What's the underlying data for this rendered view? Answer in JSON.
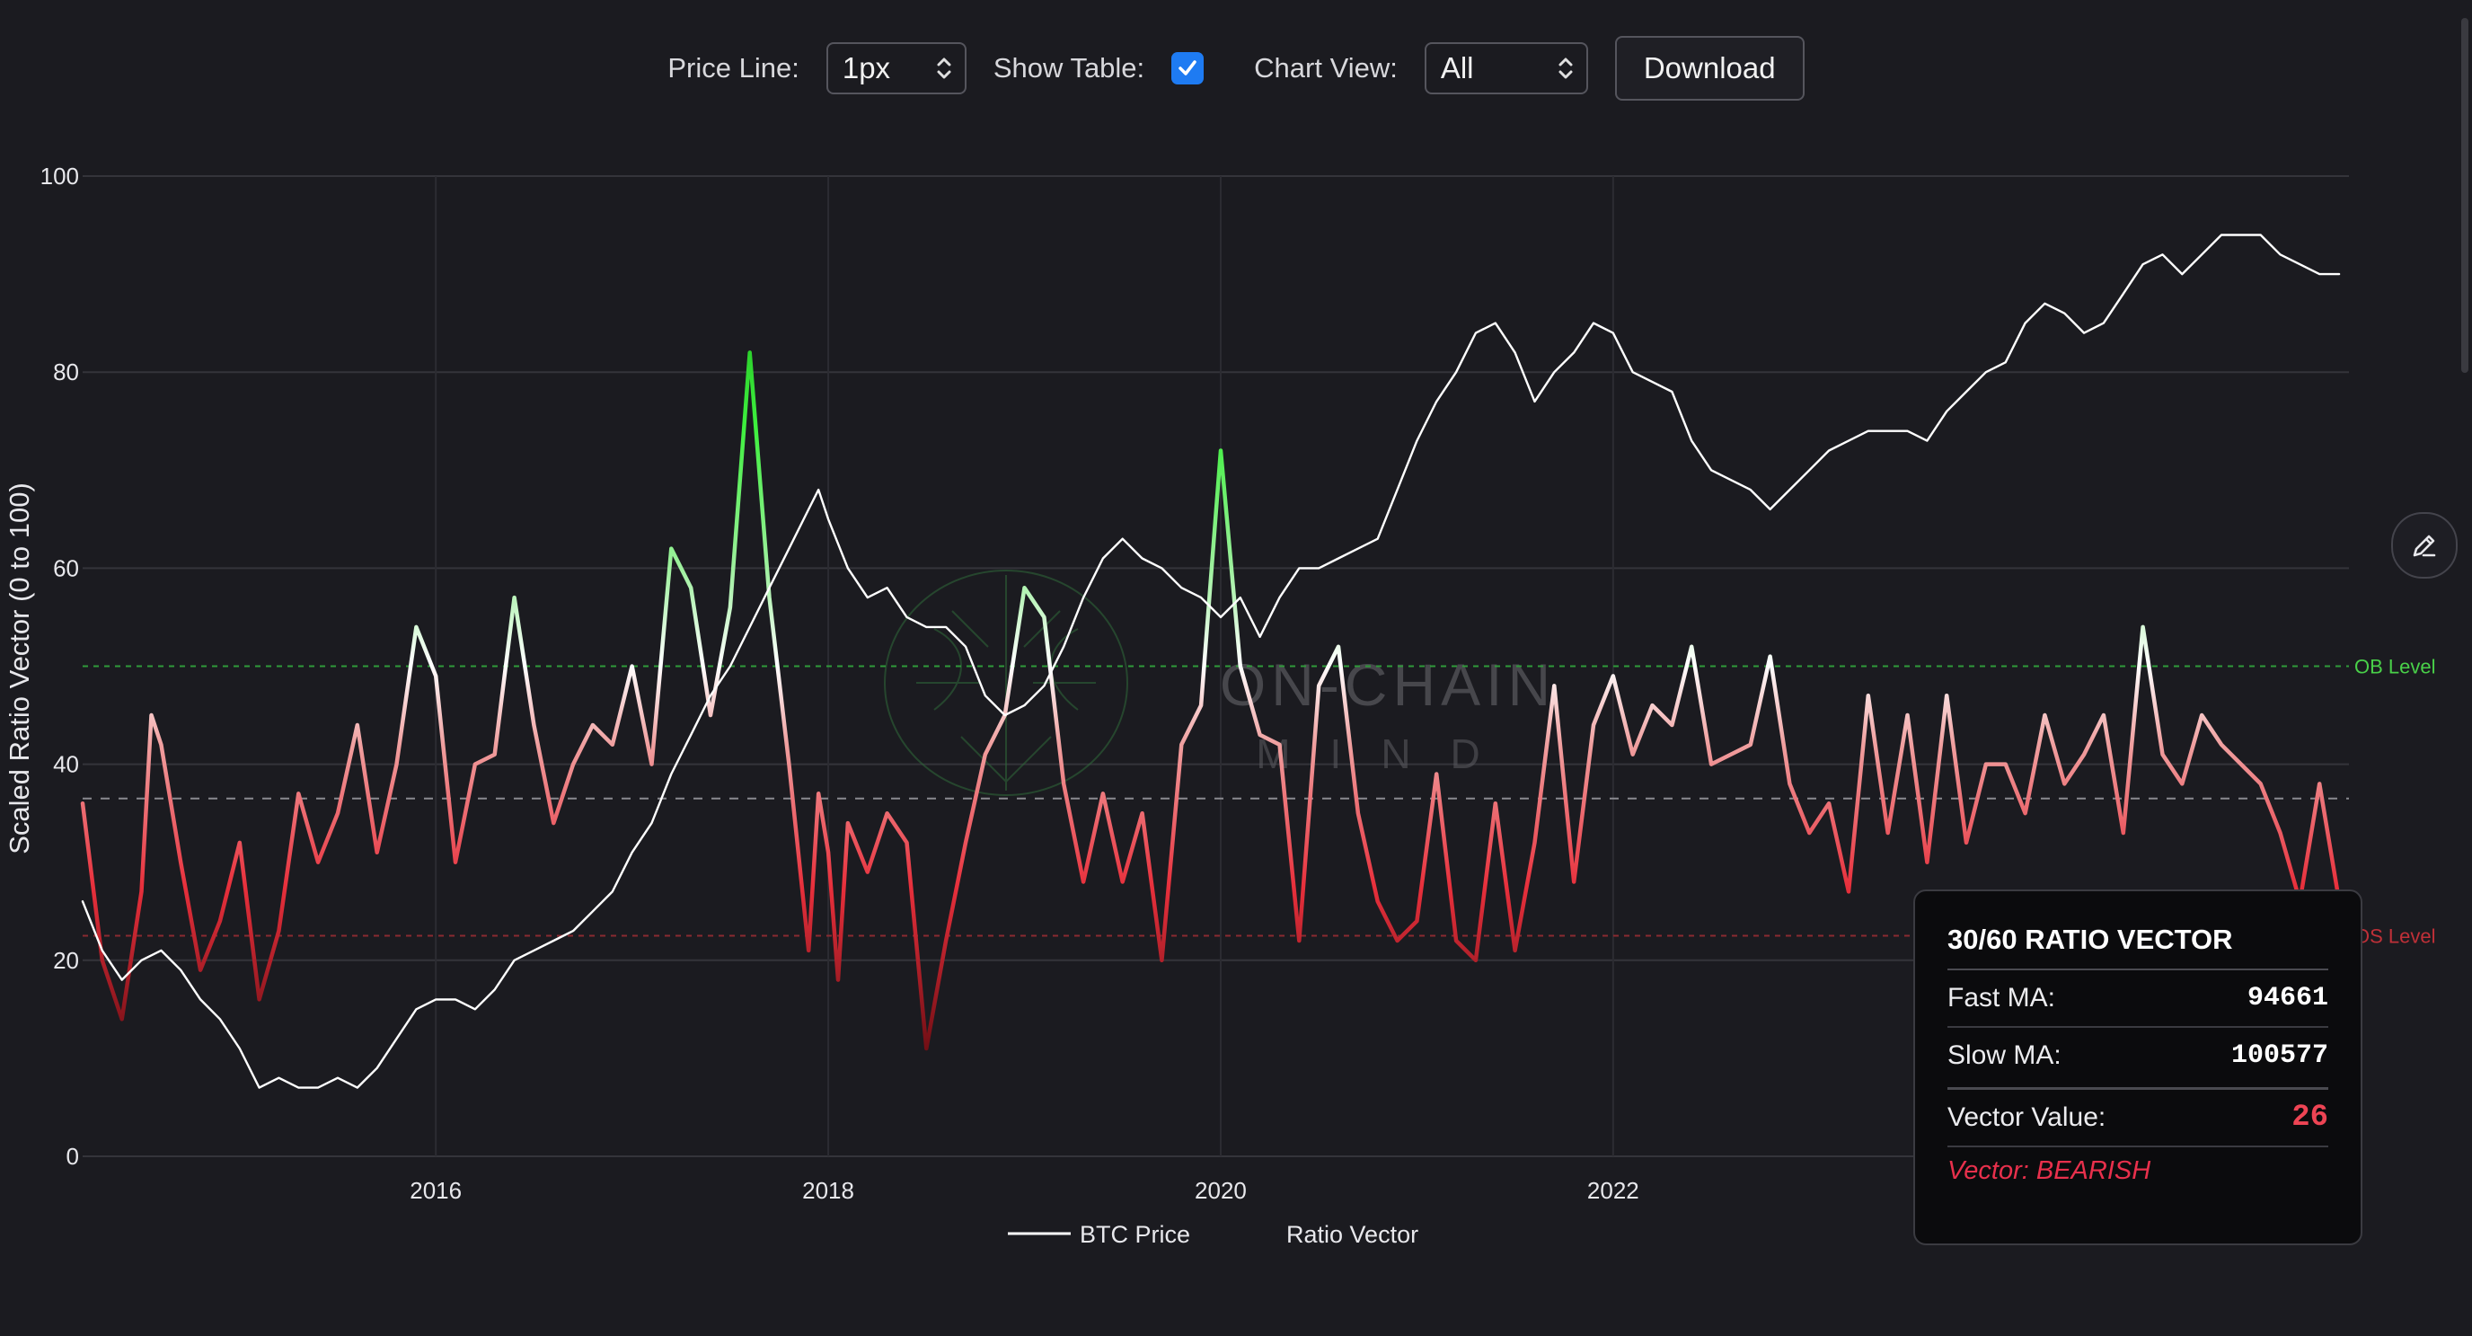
{
  "controls": {
    "price_line_label": "Price Line:",
    "price_line_value": "1px",
    "show_table_label": "Show Table:",
    "show_table_checked": true,
    "chart_view_label": "Chart View:",
    "chart_view_value": "All",
    "download_label": "Download"
  },
  "watermark": {
    "line1": "ON-CHAIN",
    "line2": "MIND"
  },
  "levels": {
    "ob_label": "OB Level",
    "os_label": "OS Level",
    "ob_value": 50,
    "os_value": 22.5,
    "mid_value": 36.5
  },
  "legend": {
    "price": "BTC Price",
    "vector": "Ratio Vector"
  },
  "tooltip": {
    "title": "30/60 RATIO VECTOR",
    "fast_label": "Fast MA:",
    "fast_value": "94661",
    "slow_label": "Slow MA:",
    "slow_value": "100577",
    "vector_label": "Vector Value:",
    "vector_value": "26",
    "status": "Vector: BEARISH"
  },
  "colors": {
    "background": "#1b1b20",
    "bullish": "#3ee83e",
    "bearish": "#e8303c",
    "price": "#ffffff",
    "accent": "#1e7bf2"
  },
  "icons": {
    "edit": "pencil-icon",
    "select": "chevron-updown-icon",
    "check": "checkmark-icon"
  },
  "chart_data": {
    "type": "line",
    "ylabel": "Scaled Ratio Vector (0 to 100)",
    "ylim": [
      0,
      100
    ],
    "xlim": [
      2014.2,
      2025.75
    ],
    "y_ticks": [
      0,
      20,
      40,
      60,
      80,
      100
    ],
    "x_ticks": [
      2016,
      2018,
      2020,
      2022
    ],
    "grid": true,
    "legend_placement": "bottom-center",
    "series": [
      {
        "name": "BTC Price",
        "x": [
          2014.2,
          2014.3,
          2014.4,
          2014.5,
          2014.6,
          2014.7,
          2014.8,
          2014.9,
          2015.0,
          2015.1,
          2015.2,
          2015.3,
          2015.4,
          2015.5,
          2015.6,
          2015.7,
          2015.8,
          2015.9,
          2016.0,
          2016.1,
          2016.2,
          2016.3,
          2016.4,
          2016.5,
          2016.6,
          2016.7,
          2016.8,
          2016.9,
          2017.0,
          2017.1,
          2017.2,
          2017.3,
          2017.4,
          2017.5,
          2017.6,
          2017.7,
          2017.8,
          2017.9,
          2017.95,
          2018.0,
          2018.1,
          2018.2,
          2018.3,
          2018.4,
          2018.5,
          2018.6,
          2018.7,
          2018.8,
          2018.9,
          2019.0,
          2019.1,
          2019.2,
          2019.3,
          2019.4,
          2019.5,
          2019.6,
          2019.7,
          2019.8,
          2019.9,
          2020.0,
          2020.1,
          2020.2,
          2020.3,
          2020.4,
          2020.5,
          2020.6,
          2020.7,
          2020.8,
          2020.9,
          2021.0,
          2021.1,
          2021.2,
          2021.3,
          2021.4,
          2021.5,
          2021.6,
          2021.7,
          2021.8,
          2021.9,
          2022.0,
          2022.1,
          2022.2,
          2022.3,
          2022.4,
          2022.5,
          2022.6,
          2022.7,
          2022.8,
          2022.9,
          2023.0,
          2023.1,
          2023.2,
          2023.3,
          2023.4,
          2023.5,
          2023.6,
          2023.7,
          2023.8,
          2023.9,
          2024.0,
          2024.1,
          2024.2,
          2024.3,
          2024.4,
          2024.5,
          2024.6,
          2024.7,
          2024.8,
          2024.9,
          2025.0,
          2025.1,
          2025.2,
          2025.3,
          2025.4,
          2025.5,
          2025.6,
          2025.7
        ],
        "y": [
          26,
          21,
          18,
          20,
          21,
          19,
          16,
          14,
          11,
          7,
          8,
          7,
          7,
          8,
          7,
          9,
          12,
          15,
          16,
          16,
          15,
          17,
          20,
          21,
          22,
          23,
          25,
          27,
          31,
          34,
          39,
          43,
          47,
          50,
          54,
          58,
          62,
          66,
          68,
          65,
          60,
          57,
          58,
          55,
          54,
          54,
          52,
          47,
          45,
          46,
          48,
          52,
          57,
          61,
          63,
          61,
          60,
          58,
          57,
          55,
          57,
          53,
          57,
          60,
          60,
          61,
          62,
          63,
          68,
          73,
          77,
          80,
          84,
          85,
          82,
          77,
          80,
          82,
          85,
          84,
          80,
          79,
          78,
          73,
          70,
          69,
          68,
          66,
          68,
          70,
          72,
          73,
          74,
          74,
          74,
          73,
          76,
          78,
          80,
          81,
          85,
          87,
          86,
          84,
          85,
          88,
          91,
          92,
          90,
          92,
          94,
          94,
          94,
          92,
          91,
          90,
          90
        ]
      },
      {
        "name": "Ratio Vector",
        "x": [
          2014.2,
          2014.3,
          2014.4,
          2014.5,
          2014.55,
          2014.6,
          2014.7,
          2014.8,
          2014.9,
          2015.0,
          2015.1,
          2015.2,
          2015.3,
          2015.4,
          2015.5,
          2015.6,
          2015.7,
          2015.8,
          2015.9,
          2016.0,
          2016.1,
          2016.2,
          2016.3,
          2016.4,
          2016.5,
          2016.6,
          2016.7,
          2016.8,
          2016.9,
          2017.0,
          2017.1,
          2017.2,
          2017.3,
          2017.4,
          2017.5,
          2017.6,
          2017.7,
          2017.8,
          2017.9,
          2017.95,
          2018.0,
          2018.05,
          2018.1,
          2018.2,
          2018.3,
          2018.4,
          2018.5,
          2018.6,
          2018.7,
          2018.8,
          2018.9,
          2019.0,
          2019.1,
          2019.2,
          2019.3,
          2019.4,
          2019.5,
          2019.6,
          2019.7,
          2019.8,
          2019.9,
          2020.0,
          2020.1,
          2020.2,
          2020.3,
          2020.4,
          2020.5,
          2020.6,
          2020.7,
          2020.8,
          2020.9,
          2021.0,
          2021.1,
          2021.2,
          2021.3,
          2021.4,
          2021.5,
          2021.6,
          2021.7,
          2021.8,
          2021.9,
          2022.0,
          2022.1,
          2022.2,
          2022.3,
          2022.4,
          2022.5,
          2022.6,
          2022.7,
          2022.8,
          2022.9,
          2023.0,
          2023.1,
          2023.2,
          2023.3,
          2023.4,
          2023.5,
          2023.6,
          2023.7,
          2023.8,
          2023.9,
          2024.0,
          2024.1,
          2024.2,
          2024.3,
          2024.4,
          2024.5,
          2024.6,
          2024.7,
          2024.8,
          2024.9,
          2025.0,
          2025.1,
          2025.2,
          2025.3,
          2025.4,
          2025.5,
          2025.6,
          2025.7
        ],
        "y": [
          36,
          20,
          14,
          27,
          45,
          42,
          30,
          19,
          24,
          32,
          16,
          23,
          37,
          30,
          35,
          44,
          31,
          40,
          54,
          49,
          30,
          40,
          41,
          57,
          44,
          34,
          40,
          44,
          42,
          50,
          40,
          62,
          58,
          45,
          56,
          82,
          57,
          40,
          21,
          37,
          31,
          18,
          34,
          29,
          35,
          32,
          11,
          22,
          32,
          41,
          45,
          58,
          55,
          38,
          28,
          37,
          28,
          35,
          20,
          42,
          46,
          72,
          50,
          43,
          42,
          22,
          48,
          52,
          35,
          26,
          22,
          24,
          39,
          22,
          20,
          36,
          21,
          32,
          48,
          28,
          44,
          49,
          41,
          46,
          44,
          52,
          40,
          41,
          42,
          51,
          38,
          33,
          36,
          27,
          47,
          33,
          45,
          30,
          47,
          32,
          40,
          40,
          35,
          45,
          38,
          41,
          45,
          33,
          54,
          41,
          38,
          45,
          42,
          40,
          38,
          33,
          26,
          38,
          26
        ]
      }
    ]
  }
}
